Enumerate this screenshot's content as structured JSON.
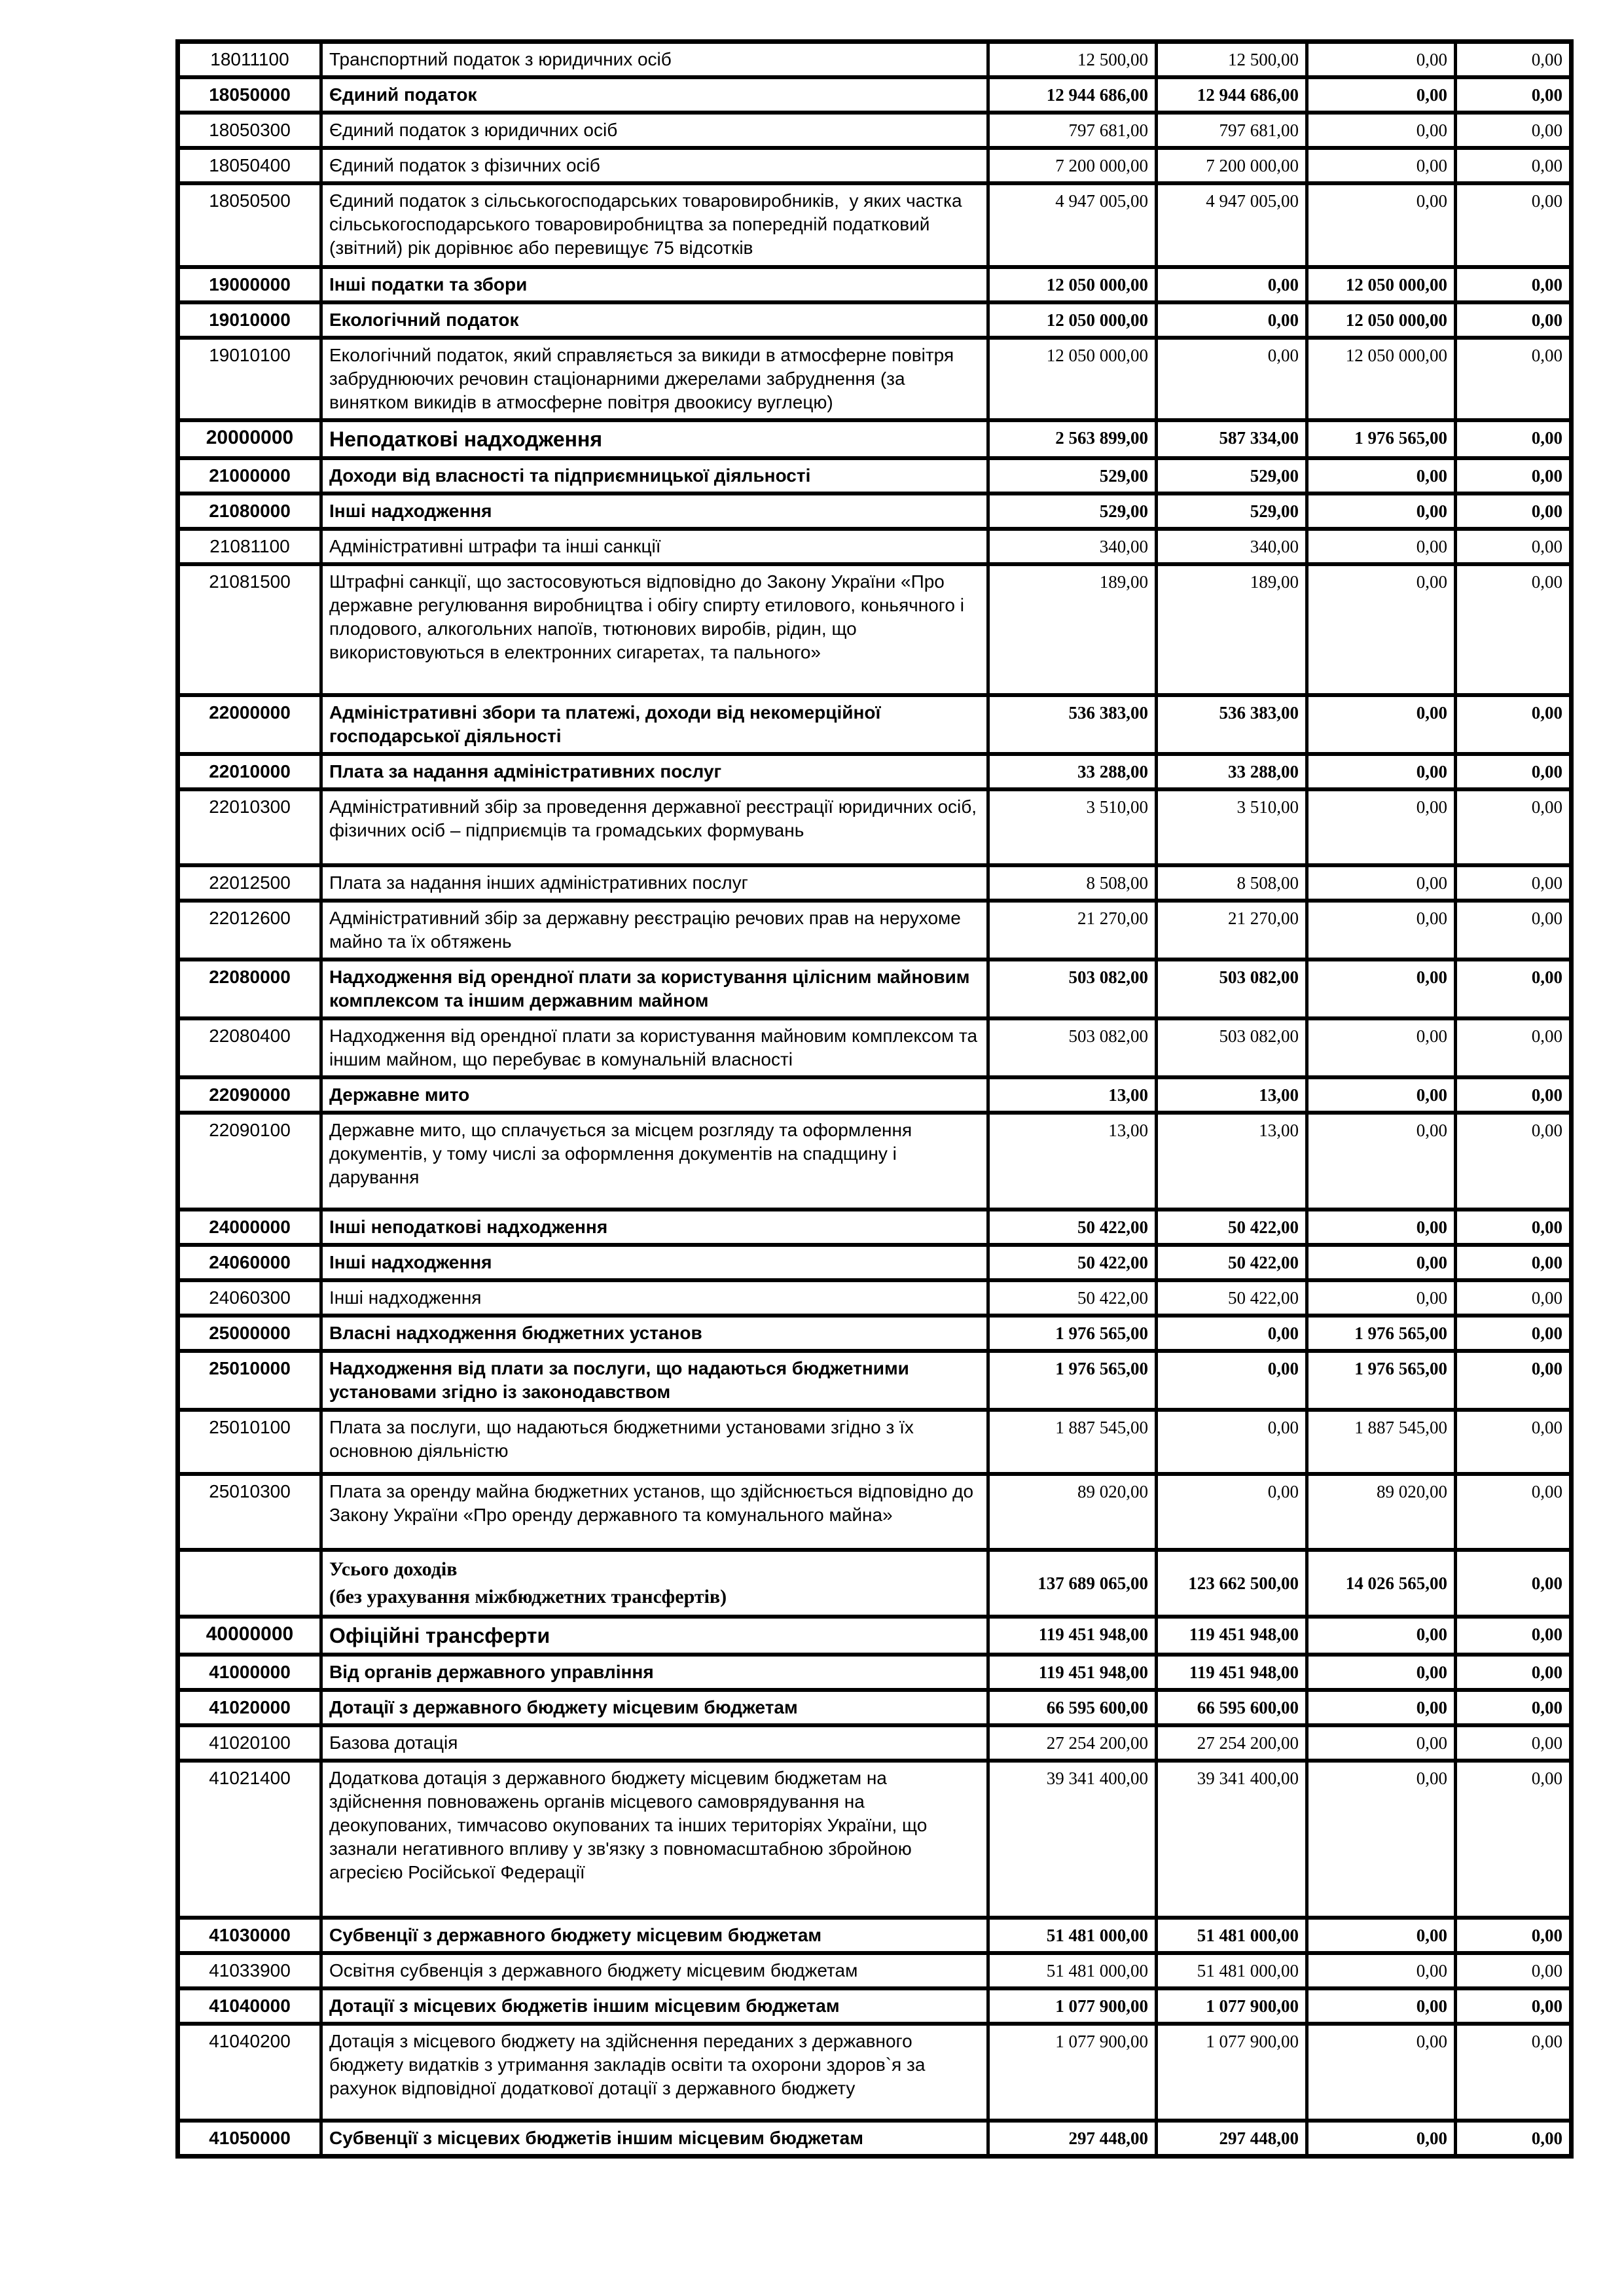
{
  "page": {
    "background_color": "#ffffff",
    "border_color": "#000000"
  },
  "table": {
    "rows": [
      {
        "code": "18011100",
        "name": "Транспортний податок з юридичних осіб",
        "values": [
          "12 500,00",
          "12 500,00",
          "0,00",
          "0,00"
        ],
        "level": "detail"
      },
      {
        "code": "18050000",
        "name": "Єдиний податок",
        "values": [
          "12 944 686,00",
          "12 944 686,00",
          "0,00",
          "0,00"
        ],
        "level": "subsection"
      },
      {
        "code": "18050300",
        "name": "Єдиний податок з юридичних осіб",
        "values": [
          "797 681,00",
          "797 681,00",
          "0,00",
          "0,00"
        ],
        "level": "detail"
      },
      {
        "code": "18050400",
        "name": "Єдиний податок з фізичних осіб",
        "values": [
          "7 200 000,00",
          "7 200 000,00",
          "0,00",
          "0,00"
        ],
        "level": "detail"
      },
      {
        "code": "18050500",
        "name": "Єдиний податок з сільськогосподарських товаровиробників,  у яких частка сільськогосподарського товаровиробництва за попередній податковий (звітний) рік дорівнює або перевищує 75 відсотків",
        "values": [
          "4 947 005,00",
          "4 947 005,00",
          "0,00",
          "0,00"
        ],
        "level": "detail"
      },
      {
        "code": "19000000",
        "name": "Інші податки та збори",
        "values": [
          "12 050 000,00",
          "0,00",
          "12 050 000,00",
          "0,00"
        ],
        "level": "subsection"
      },
      {
        "code": "19010000",
        "name": "Екологічний податок",
        "values": [
          "12 050 000,00",
          "0,00",
          "12 050 000,00",
          "0,00"
        ],
        "level": "subsection"
      },
      {
        "code": "19010100",
        "name": "Екологічний податок, який справляється за викиди в атмосферне повітря забруднюючих речовин стаціонарними джерелами забруднення (за винятком викидів в атмосферне повітря двоокису вуглецю)",
        "values": [
          "12 050 000,00",
          "0,00",
          "12 050 000,00",
          "0,00"
        ],
        "level": "detail"
      },
      {
        "code": "20000000",
        "name": "Неподаткові надходження",
        "values": [
          "2 563 899,00",
          "587 334,00",
          "1 976 565,00",
          "0,00"
        ],
        "level": "class"
      },
      {
        "code": "21000000",
        "name": "Доходи від власності та підприємницької діяльності",
        "values": [
          "529,00",
          "529,00",
          "0,00",
          "0,00"
        ],
        "level": "subsection"
      },
      {
        "code": "21080000",
        "name": "Інші надходження",
        "values": [
          "529,00",
          "529,00",
          "0,00",
          "0,00"
        ],
        "level": "subsection"
      },
      {
        "code": "21081100",
        "name": "Адміністративні штрафи та інші санкції",
        "values": [
          "340,00",
          "340,00",
          "0,00",
          "0,00"
        ],
        "level": "detail"
      },
      {
        "code": "21081500",
        "name": "Штрафні санкції, що застосовуються відповідно до Закону України «Про державне регулювання виробництва і обігу спирту етилового, коньячного і плодового, алкогольних напоїв, тютюнових виробів, рідин, що використовуються в електронних сигаретах, та пального»",
        "values": [
          "189,00",
          "189,00",
          "0,00",
          "0,00"
        ],
        "level": "detail"
      },
      {
        "code": "22000000",
        "name": "Адміністративні збори та платежі, доходи від некомерційної господарської діяльності",
        "values": [
          "536 383,00",
          "536 383,00",
          "0,00",
          "0,00"
        ],
        "level": "subsection"
      },
      {
        "code": "22010000",
        "name": "Плата за надання адміністративних послуг",
        "values": [
          "33 288,00",
          "33 288,00",
          "0,00",
          "0,00"
        ],
        "level": "subsection"
      },
      {
        "code": "22010300",
        "name": "Адміністративний збір за проведення державної реєстрації юридичних осіб,  фізичних осіб – підприємців та громадських формувань",
        "values": [
          "3 510,00",
          "3 510,00",
          "0,00",
          "0,00"
        ],
        "level": "detail"
      },
      {
        "code": "22012500",
        "name": "Плата за надання інших адміністративних послуг",
        "values": [
          "8 508,00",
          "8 508,00",
          "0,00",
          "0,00"
        ],
        "level": "detail"
      },
      {
        "code": "22012600",
        "name": "Адміністративний збір за державну реєстрацію речових прав на нерухоме майно та їх обтяжень",
        "values": [
          "21 270,00",
          "21 270,00",
          "0,00",
          "0,00"
        ],
        "level": "detail"
      },
      {
        "code": "22080000",
        "name": "Надходження від орендної плати за користування цілісним майновим комплексом та іншим державним майном",
        "values": [
          "503 082,00",
          "503 082,00",
          "0,00",
          "0,00"
        ],
        "level": "subsection"
      },
      {
        "code": "22080400",
        "name": "Надходження від орендної плати за користування майновим комплексом та іншим майном, що перебуває в комунальній власності",
        "values": [
          "503 082,00",
          "503 082,00",
          "0,00",
          "0,00"
        ],
        "level": "detail"
      },
      {
        "code": "22090000",
        "name": "Державне мито",
        "values": [
          "13,00",
          "13,00",
          "0,00",
          "0,00"
        ],
        "level": "subsection"
      },
      {
        "code": "22090100",
        "name": "Державне мито, що сплачується за місцем розгляду та оформлення документів, у тому числі за оформлення документів на спадщину і дарування",
        "values": [
          "13,00",
          "13,00",
          "0,00",
          "0,00"
        ],
        "level": "detail"
      },
      {
        "code": "24000000",
        "name": "Інші неподаткові надходження",
        "values": [
          "50 422,00",
          "50 422,00",
          "0,00",
          "0,00"
        ],
        "level": "subsection"
      },
      {
        "code": "24060000",
        "name": "Інші надходження",
        "values": [
          "50 422,00",
          "50 422,00",
          "0,00",
          "0,00"
        ],
        "level": "subsection"
      },
      {
        "code": "24060300",
        "name": "Інші надходження",
        "values": [
          "50 422,00",
          "50 422,00",
          "0,00",
          "0,00"
        ],
        "level": "detail"
      },
      {
        "code": "25000000",
        "name": "Власні надходження бюджетних установ",
        "values": [
          "1 976 565,00",
          "0,00",
          "1 976 565,00",
          "0,00"
        ],
        "level": "subsection"
      },
      {
        "code": "25010000",
        "name": "Надходження від плати за послуги, що надаються бюджетними установами згідно із законодавством",
        "values": [
          "1 976 565,00",
          "0,00",
          "1 976 565,00",
          "0,00"
        ],
        "level": "subsection"
      },
      {
        "code": "25010100",
        "name": "Плата за послуги, що надаються бюджетними установами згідно з їх основною діяльністю",
        "values": [
          "1 887 545,00",
          "0,00",
          "1 887 545,00",
          "0,00"
        ],
        "level": "detail"
      },
      {
        "code": "25010300",
        "name": "Плата за оренду майна бюджетних установ, що здійснюється відповідно до Закону України «Про оренду державного та комунального майна»",
        "values": [
          "89 020,00",
          "0,00",
          "89 020,00",
          "0,00"
        ],
        "level": "detail"
      },
      {
        "code": "",
        "name": "Усього доходів\n(без урахування міжбюджетних трансфертів)",
        "values": [
          "137 689 065,00",
          "123 662 500,00",
          "14 026 565,00",
          "0,00"
        ],
        "level": "total"
      },
      {
        "code": "40000000",
        "name": "Офіційні трансферти",
        "values": [
          "119 451 948,00",
          "119 451 948,00",
          "0,00",
          "0,00"
        ],
        "level": "class"
      },
      {
        "code": "41000000",
        "name": "Від органів державного управління",
        "values": [
          "119 451 948,00",
          "119 451 948,00",
          "0,00",
          "0,00"
        ],
        "level": "subsection"
      },
      {
        "code": "41020000",
        "name": "Дотації з державного бюджету місцевим бюджетам",
        "values": [
          "66 595 600,00",
          "66 595 600,00",
          "0,00",
          "0,00"
        ],
        "level": "subsection"
      },
      {
        "code": "41020100",
        "name": "Базова дотація",
        "values": [
          "27 254 200,00",
          "27 254 200,00",
          "0,00",
          "0,00"
        ],
        "level": "detail"
      },
      {
        "code": "41021400",
        "name": "Додаткова дотація з державного бюджету місцевим бюджетам на здійснення повноважень органів місцевого самоврядування на деокупованих, тимчасово окупованих та інших територіях України, що зазнали негативного впливу у зв'язку з повномасштабною збройною агресією Російської Федерації",
        "values": [
          "39 341 400,00",
          "39 341 400,00",
          "0,00",
          "0,00"
        ],
        "level": "detail"
      },
      {
        "code": "41030000",
        "name": "Субвенції з державного бюджету місцевим бюджетам",
        "values": [
          "51 481 000,00",
          "51 481 000,00",
          "0,00",
          "0,00"
        ],
        "level": "subsection"
      },
      {
        "code": "41033900",
        "name": "Освітня субвенція з державного бюджету місцевим бюджетам",
        "values": [
          "51 481 000,00",
          "51 481 000,00",
          "0,00",
          "0,00"
        ],
        "level": "detail"
      },
      {
        "code": "41040000",
        "name": "Дотації з місцевих бюджетів іншим місцевим бюджетам",
        "values": [
          "1 077 900,00",
          "1 077 900,00",
          "0,00",
          "0,00"
        ],
        "level": "subsection"
      },
      {
        "code": "41040200",
        "name": "Дотація з місцевого бюджету на здійснення переданих з державного бюджету видатків з утримання закладів освіти та охорони здоров`я за рахунок відповідної додаткової дотації з державного бюджету",
        "values": [
          "1 077 900,00",
          "1 077 900,00",
          "0,00",
          "0,00"
        ],
        "level": "detail"
      },
      {
        "code": "41050000",
        "name": "Субвенції з місцевих бюджетів іншим місцевим бюджетам",
        "values": [
          "297 448,00",
          "297 448,00",
          "0,00",
          "0,00"
        ],
        "level": "subsection"
      }
    ]
  }
}
